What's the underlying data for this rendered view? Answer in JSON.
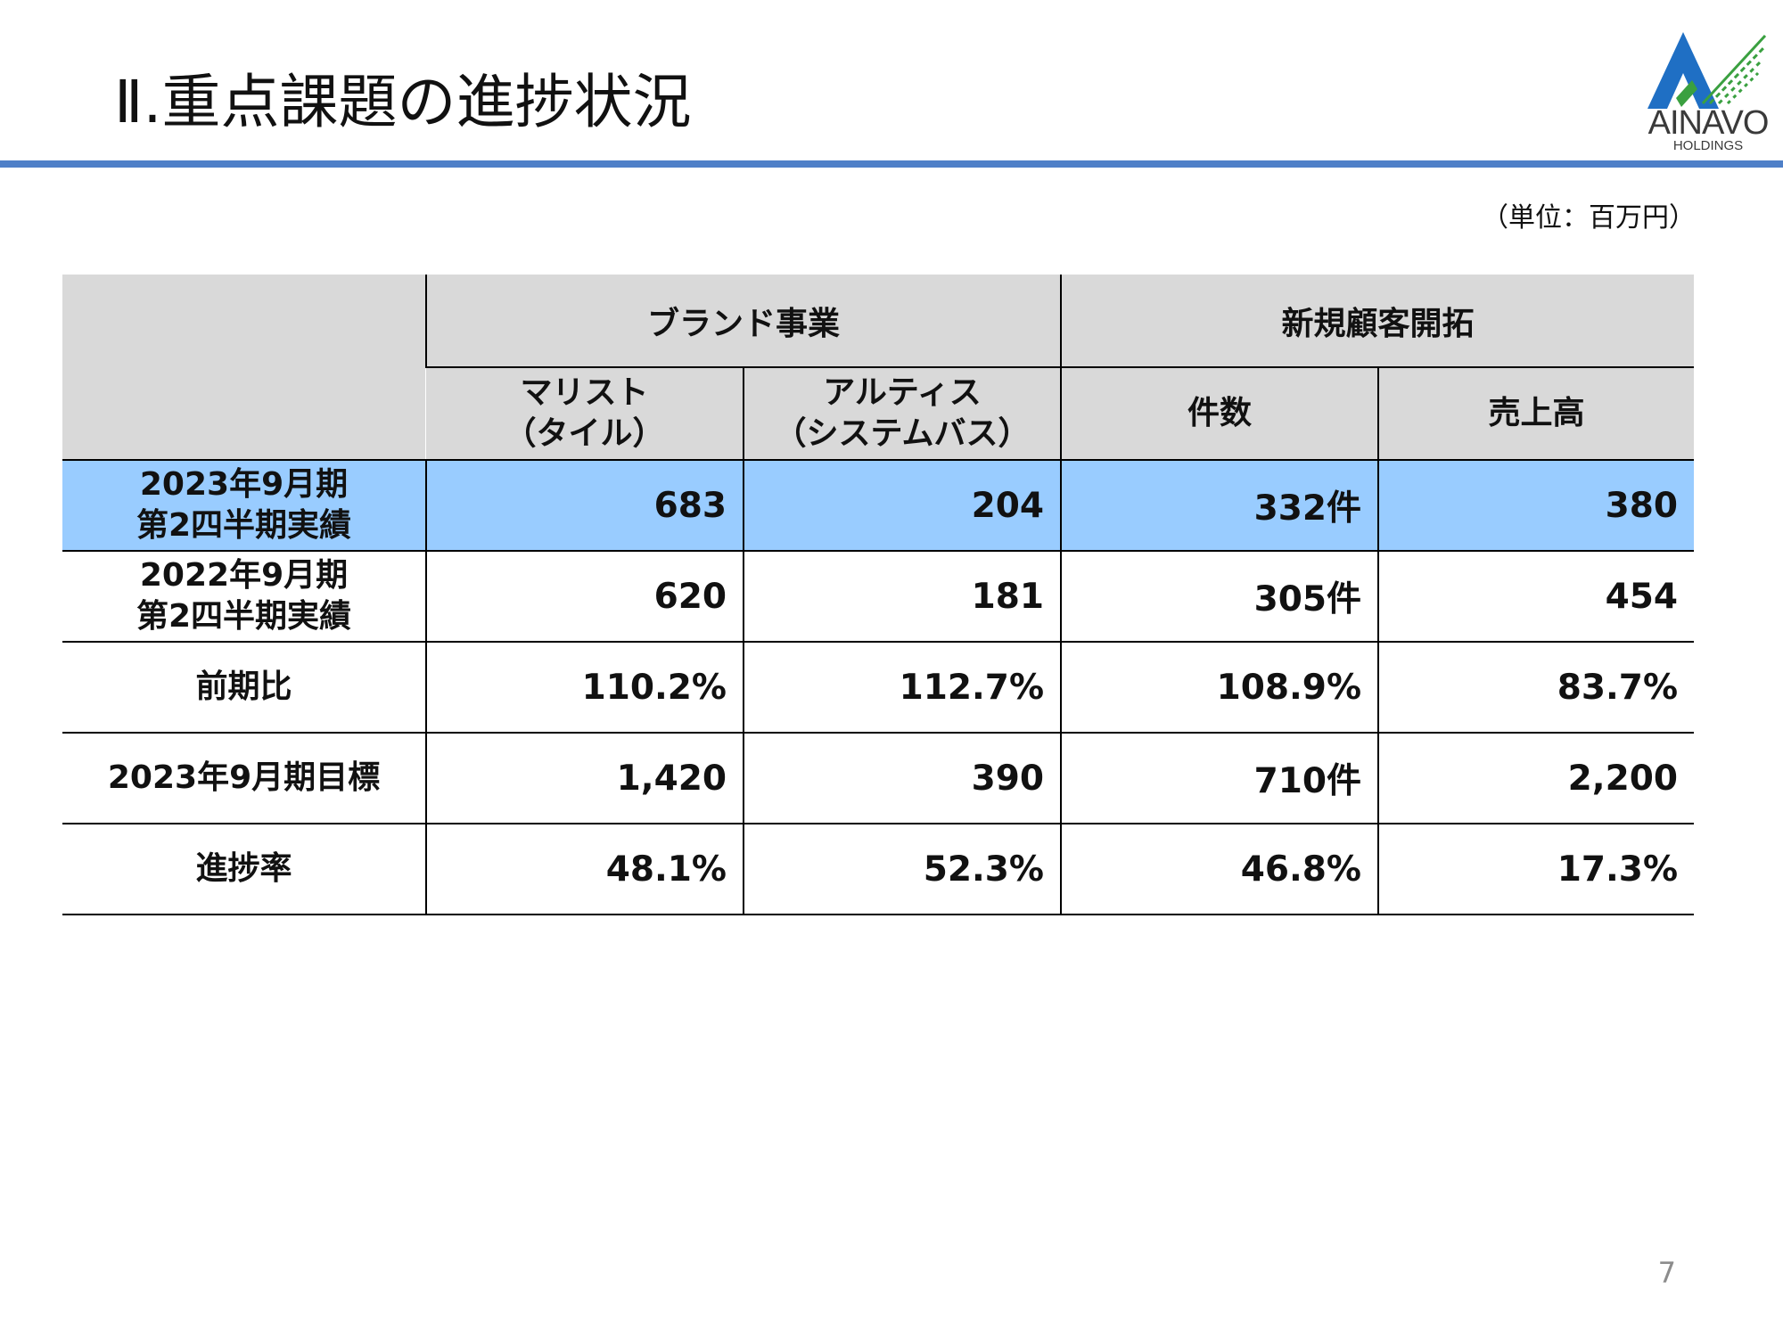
{
  "slide": {
    "title": "Ⅱ.重点課題の進捗状況",
    "unit_note": "（単位：百万円）",
    "page_number": "7"
  },
  "logo": {
    "name": "AINAVO",
    "sub": "HOLDINGS",
    "colors": {
      "blue": "#1f6fc4",
      "green": "#3aa040",
      "gray": "#3a3a3a"
    }
  },
  "colors": {
    "title_rule": "#4f80c8",
    "header_bg": "#d9d9d9",
    "highlight_row_bg": "#99ccff"
  },
  "table": {
    "groups": [
      "ブランド事業",
      "新規顧客開拓"
    ],
    "columns": [
      "マリスト\n（タイル）",
      "アルティス\n（システムバス）",
      "件数",
      "売上高"
    ],
    "rows": [
      {
        "label": "2023年9月期\n第2四半期実績",
        "values": [
          "683",
          "204",
          "332件",
          "380"
        ],
        "highlight": true
      },
      {
        "label": "2022年9月期\n第2四半期実績",
        "values": [
          "620",
          "181",
          "305件",
          "454"
        ],
        "highlight": false
      },
      {
        "label": "前期比",
        "values": [
          "110.2%",
          "112.7%",
          "108.9%",
          "83.7%"
        ],
        "highlight": false
      },
      {
        "label": "2023年9月期目標",
        "values": [
          "1,420",
          "390",
          "710件",
          "2,200"
        ],
        "highlight": false
      },
      {
        "label": "進捗率",
        "values": [
          "48.1%",
          "52.3%",
          "46.8%",
          "17.3%"
        ],
        "highlight": false
      }
    ]
  }
}
